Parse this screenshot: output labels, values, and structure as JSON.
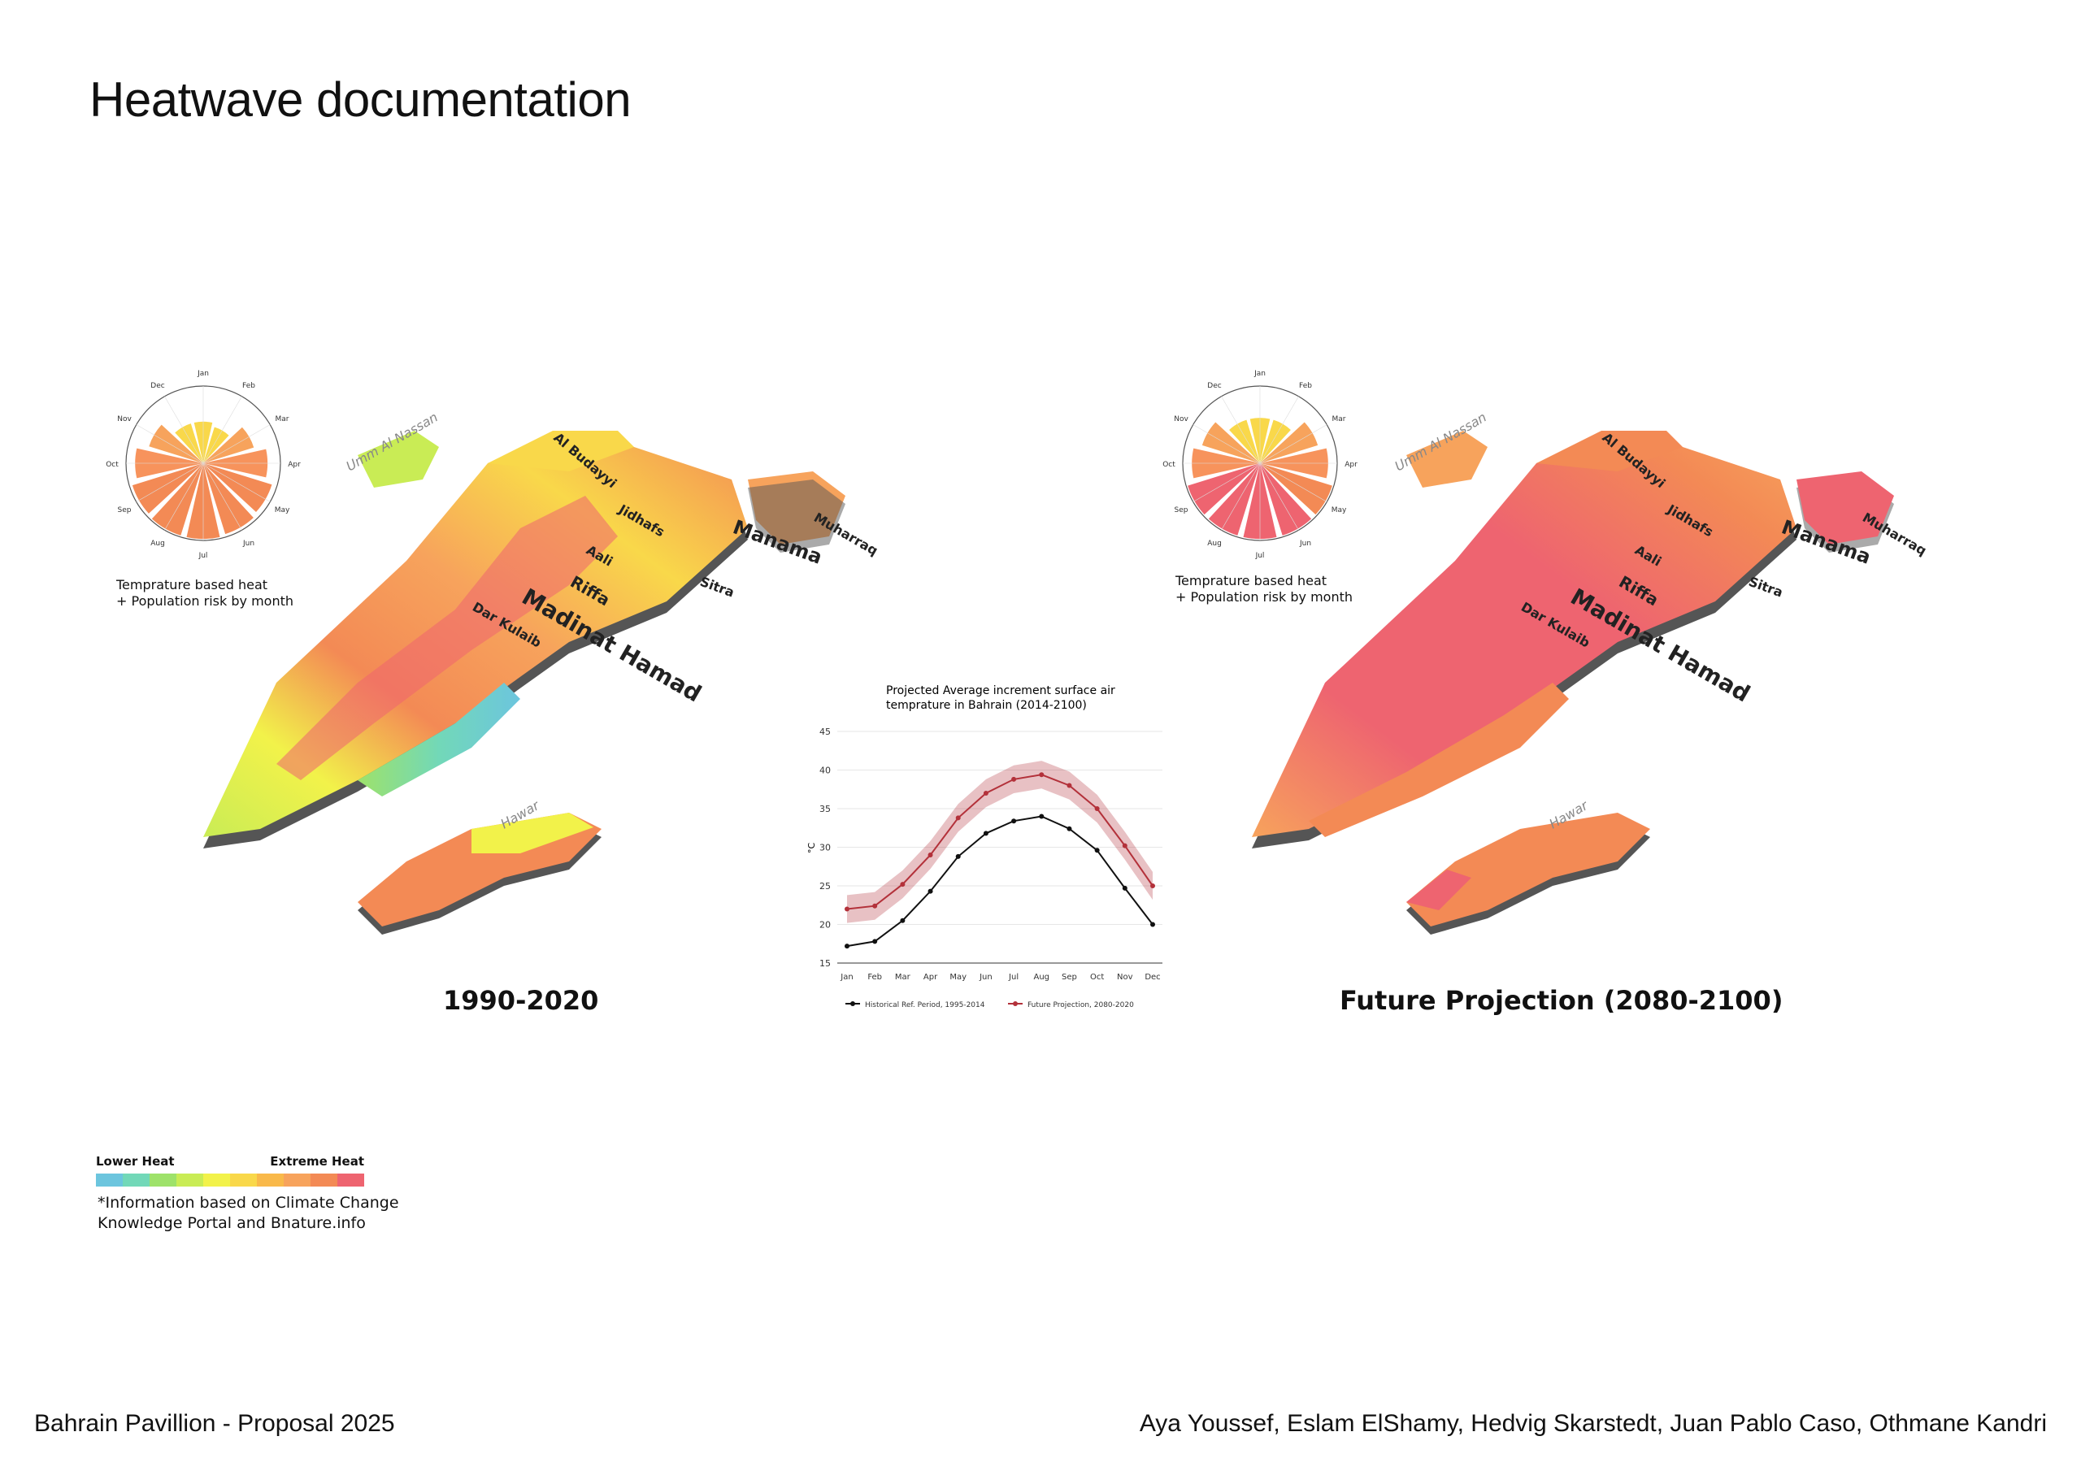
{
  "page": {
    "title": "Heatwave documentation",
    "footer_left": "Bahrain Pavillion - Proposal 2025",
    "footer_right": "Aya Youssef, Eslam ElShamy, Hedvig Skarstedt, Juan Pablo Caso, Othmane Kandri"
  },
  "maps": [
    {
      "caption": "1990-2020",
      "place_labels": [
        "Al Budayyi",
        "Umm Al Nassan",
        "Jidhafs",
        "Manama",
        "Muharraq",
        "Aali",
        "Riffa",
        "Madinat Hamad",
        "Dar Kulaib",
        "Sitra",
        "Hawar"
      ]
    },
    {
      "caption": "Future Projection (2080-2100)",
      "place_labels": [
        "Al Budayyi",
        "Umm Al Nassan",
        "Jidhafs",
        "Manama",
        "Muharraq",
        "Aali",
        "Riffa",
        "Madinat Hamad",
        "Dar Kulaib",
        "Sitra",
        "Hawar"
      ]
    }
  ],
  "radial_charts": [
    {
      "months": [
        "Jan",
        "Feb",
        "Mar",
        "Apr",
        "May",
        "Jun",
        "Jul",
        "Aug",
        "Sep",
        "Oct",
        "Nov",
        "Dec"
      ],
      "heat_level": [
        0.55,
        0.5,
        0.7,
        0.85,
        0.95,
        0.98,
        1.0,
        1.0,
        0.98,
        0.9,
        0.75,
        0.55
      ],
      "colors": [
        "#f9d84a",
        "#f9d84a",
        "#f7a35c",
        "#f7935c",
        "#f38a55",
        "#f38a55",
        "#f38a55",
        "#f38a55",
        "#f38a55",
        "#f7935c",
        "#f7a35c",
        "#f9d84a"
      ],
      "label": "Temprature based heat\n+ Population risk by month"
    },
    {
      "months": [
        "Jan",
        "Feb",
        "Mar",
        "Apr",
        "May",
        "Jun",
        "Jul",
        "Aug",
        "Sep",
        "Oct",
        "Nov",
        "Dec"
      ],
      "heat_level": [
        0.6,
        0.6,
        0.8,
        0.9,
        1.0,
        1.0,
        1.0,
        1.0,
        1.0,
        0.9,
        0.8,
        0.6
      ],
      "colors": [
        "#f9d84a",
        "#f9d84a",
        "#f7a35c",
        "#f7935c",
        "#f38a55",
        "#ee6470",
        "#ee6470",
        "#ee6470",
        "#ee6470",
        "#f7935c",
        "#f7a35c",
        "#f9d84a"
      ],
      "label": "Temprature based heat\n+ Population risk by month"
    }
  ],
  "chart_data": {
    "type": "line",
    "title": "Projected Average increment surface air\ntemprature in Bahrain (2014-2100)",
    "ylabel": "°C",
    "categories": [
      "Jan",
      "Feb",
      "Mar",
      "Apr",
      "May",
      "Jun",
      "Jul",
      "Aug",
      "Sep",
      "Oct",
      "Nov",
      "Dec"
    ],
    "ylim": [
      15,
      45
    ],
    "yticks": [
      15,
      20,
      25,
      30,
      35,
      40,
      45
    ],
    "grid": true,
    "legend_position": "bottom",
    "series": [
      {
        "name": "Historical Ref. Period, 1995-2014",
        "color": "#111111",
        "values": [
          17.2,
          17.8,
          20.5,
          24.3,
          28.8,
          31.8,
          33.4,
          34.0,
          32.4,
          29.6,
          24.7,
          20.0
        ]
      },
      {
        "name": "Future Projection, 2080-2020",
        "color": "#b3313a",
        "values": [
          22.0,
          22.4,
          25.2,
          29.0,
          33.8,
          37.0,
          38.8,
          39.4,
          38.0,
          35.0,
          30.2,
          25.0
        ],
        "band_lower": [
          20.2,
          20.6,
          23.4,
          27.2,
          32.0,
          35.2,
          37.0,
          37.6,
          36.2,
          33.2,
          28.4,
          23.2
        ],
        "band_upper": [
          23.8,
          24.2,
          27.0,
          30.8,
          35.6,
          38.8,
          40.6,
          41.2,
          39.8,
          36.8,
          32.0,
          26.8
        ]
      }
    ]
  },
  "legend": {
    "low_label": "Lower Heat",
    "high_label": "Extreme Heat",
    "colors": [
      "#6cc5de",
      "#72d8b8",
      "#9ee26a",
      "#c9ec55",
      "#f2f24a",
      "#f9d84a",
      "#f9b94a",
      "#f7a35c",
      "#f38a55",
      "#ee6470"
    ],
    "note_line1": "*Information based on Climate Change",
    "note_line2": "Knowledge Portal and Bnature.info"
  }
}
